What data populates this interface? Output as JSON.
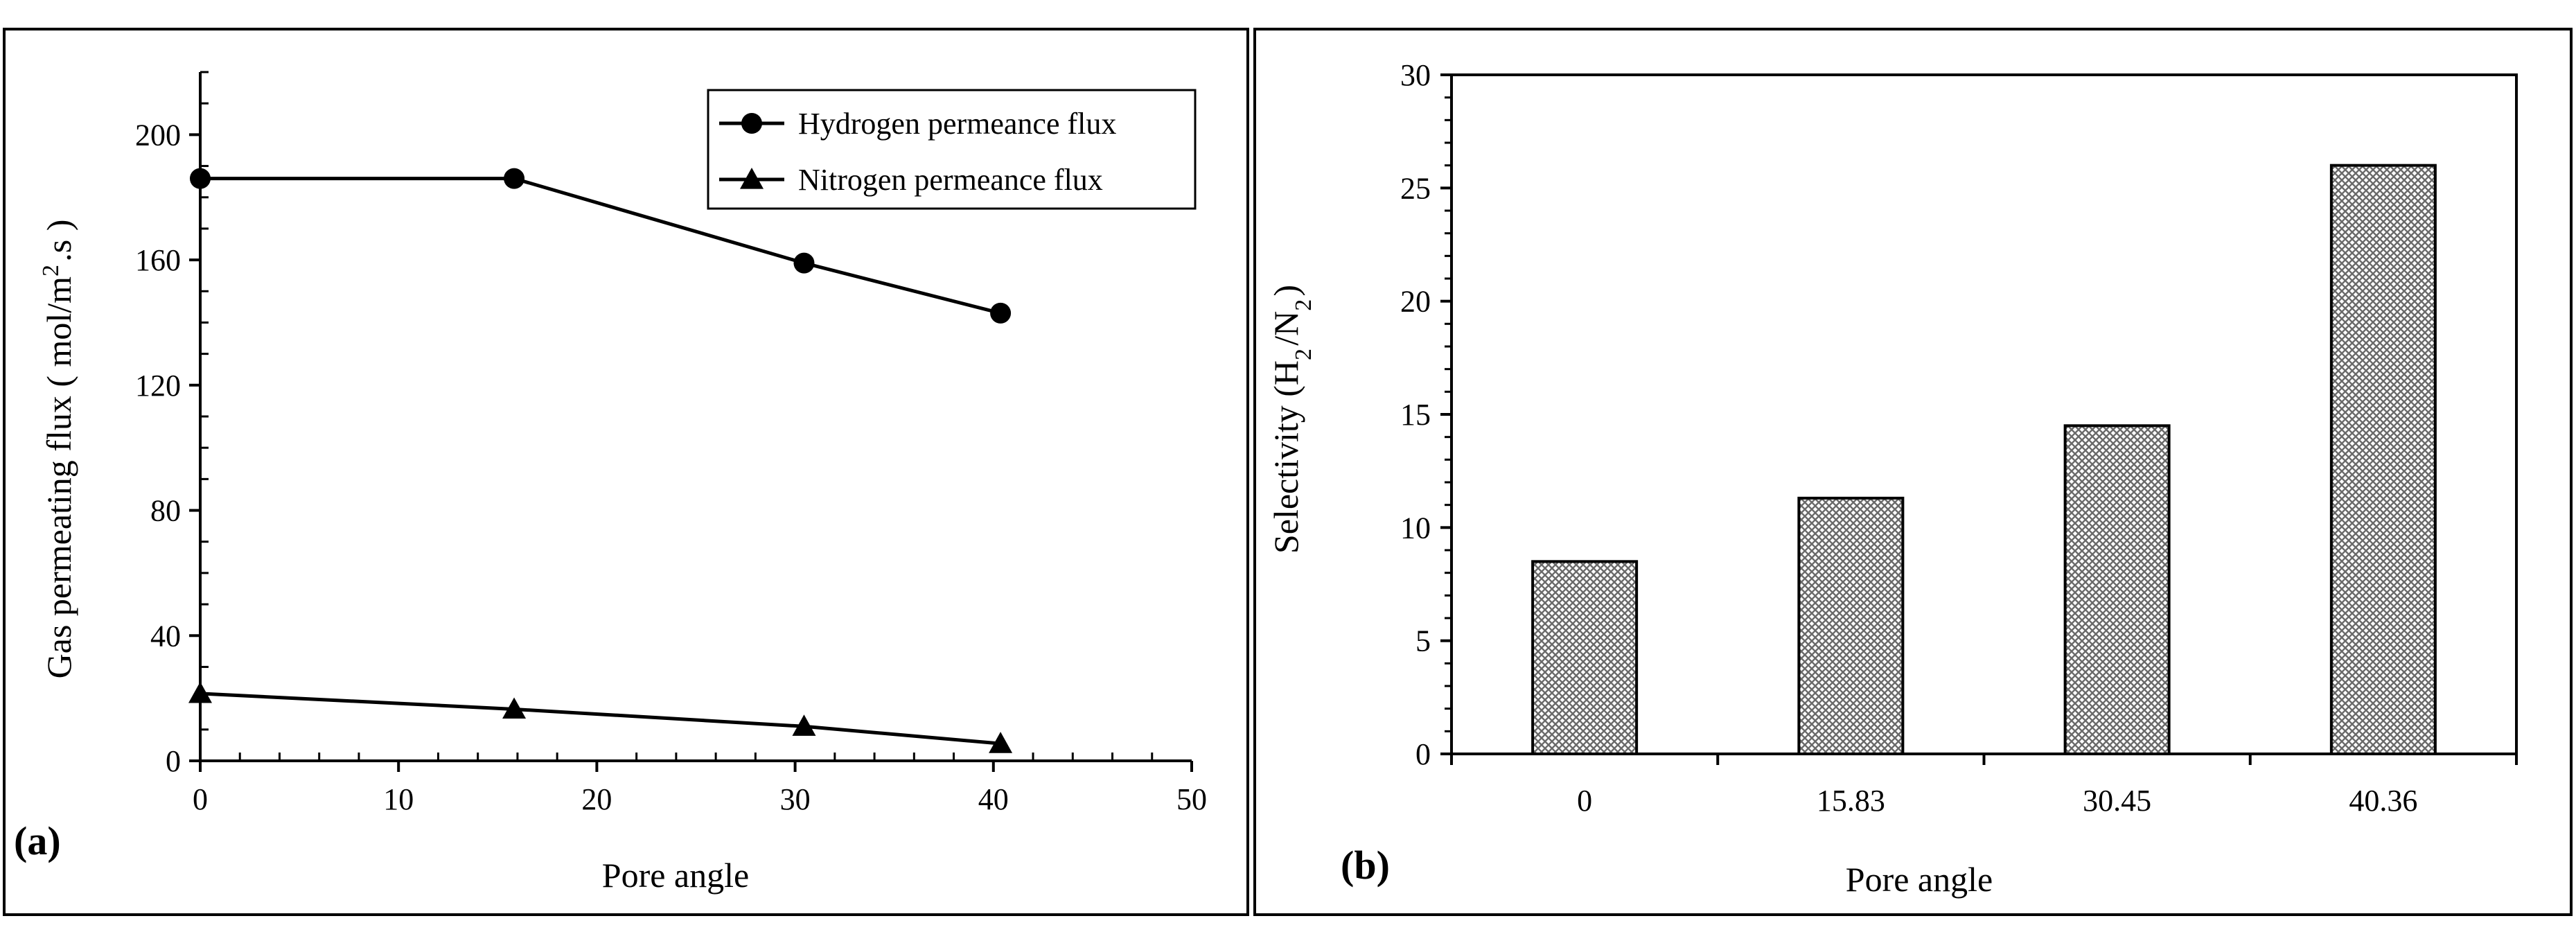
{
  "chart_data": [
    {
      "panel": "(a)",
      "type": "line",
      "xlabel": "Pore angle",
      "ylabel": "Gas permeating flux ( mol/m².s )",
      "xlim": [
        0,
        50
      ],
      "ylim": [
        0,
        220
      ],
      "xticks": [
        0,
        10,
        20,
        30,
        40,
        50
      ],
      "yticks": [
        0,
        40,
        80,
        120,
        160,
        200
      ],
      "legend_position": "top-right",
      "series": [
        {
          "name": "Hydrogen permeance flux",
          "marker": "circle",
          "x": [
            0,
            15.83,
            30.45,
            40.36
          ],
          "y": [
            186,
            186,
            159,
            143
          ]
        },
        {
          "name": "Nitrogen permeance flux",
          "marker": "triangle",
          "x": [
            0,
            15.83,
            30.45,
            40.36
          ],
          "y": [
            21.5,
            16.5,
            11,
            5.5
          ]
        }
      ]
    },
    {
      "panel": "(b)",
      "type": "bar",
      "xlabel": "Pore angle",
      "ylabel": "Selectivity (H₂/N₂)",
      "categories": [
        "0",
        "15.83",
        "30.45",
        "40.36"
      ],
      "values": [
        8.5,
        11.3,
        14.5,
        26
      ],
      "ylim": [
        0,
        30
      ],
      "yticks": [
        0,
        5,
        10,
        15,
        20,
        25,
        30
      ]
    }
  ]
}
